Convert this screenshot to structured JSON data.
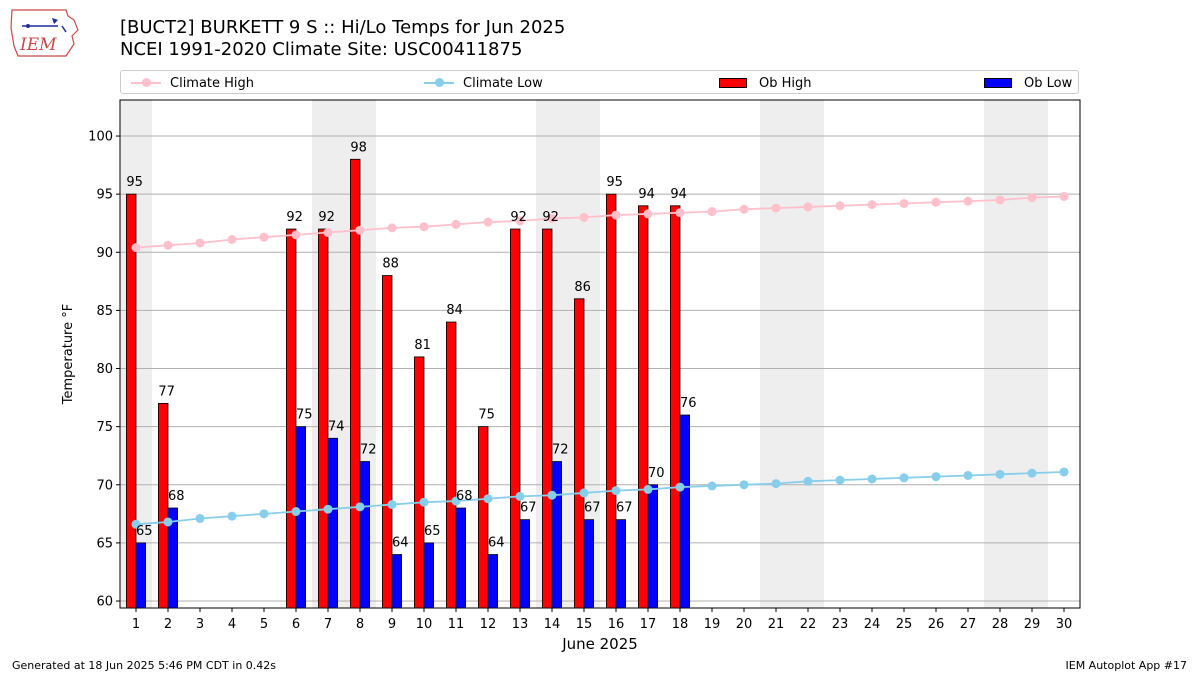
{
  "header": {
    "logo_text": "IEM",
    "title_line1": "[BUCT2] BURKETT 9 S :: Hi/Lo Temps for Jun 2025",
    "title_line2": "NCEI 1991-2020 Climate Site: USC00411875"
  },
  "legend": {
    "location": "top, above plot",
    "items": [
      {
        "label": "Climate High",
        "kind": "line",
        "color": "#ffc0cb"
      },
      {
        "label": "Climate Low",
        "kind": "line",
        "color": "#87ceeb"
      },
      {
        "label": "Ob High",
        "kind": "bar",
        "color": "#ff0000"
      },
      {
        "label": "Ob Low",
        "kind": "bar",
        "color": "#0000ff"
      }
    ]
  },
  "footer": {
    "generated": "Generated at 18 Jun 2025 5:46 PM CDT in 0.42s",
    "app": "IEM Autoplot App #17"
  },
  "chart_data": {
    "type": "bar",
    "xlabel": "June 2025",
    "ylabel": "Temperature °F",
    "xlim": [
      0.5,
      30.5
    ],
    "ylim": [
      59.4,
      103.1
    ],
    "yticks": [
      60,
      65,
      70,
      75,
      80,
      85,
      90,
      95,
      100
    ],
    "grid": "horizontal",
    "weekend_shading_days": [
      1,
      7,
      8,
      14,
      15,
      21,
      22,
      28,
      29
    ],
    "categories": [
      "1",
      "2",
      "3",
      "4",
      "5",
      "6",
      "7",
      "8",
      "9",
      "10",
      "11",
      "12",
      "13",
      "14",
      "15",
      "16",
      "17",
      "18",
      "19",
      "20",
      "21",
      "22",
      "23",
      "24",
      "25",
      "26",
      "27",
      "28",
      "29",
      "30"
    ],
    "series": [
      {
        "name": "Ob High",
        "type": "bar",
        "color": "#ff0000",
        "values": [
          95,
          77,
          null,
          null,
          null,
          92,
          92,
          98,
          88,
          81,
          84,
          75,
          92,
          92,
          86,
          95,
          94,
          94,
          null,
          null,
          null,
          null,
          null,
          null,
          null,
          null,
          null,
          null,
          null,
          null
        ],
        "labels": [
          "95",
          "77",
          "",
          "",
          "",
          "92",
          "92",
          "98",
          "88",
          "81",
          "84",
          "75",
          "92",
          "92",
          "86",
          "95",
          "94",
          "94",
          "",
          "",
          "",
          "",
          "",
          "",
          "",
          "",
          "",
          "",
          "",
          ""
        ]
      },
      {
        "name": "Ob Low",
        "type": "bar",
        "color": "#0000ff",
        "values": [
          65,
          68,
          null,
          null,
          null,
          75,
          74,
          72,
          64,
          65,
          68,
          64,
          67,
          72,
          67,
          67,
          70,
          76,
          null,
          null,
          null,
          null,
          null,
          null,
          null,
          null,
          null,
          null,
          null,
          null
        ],
        "labels": [
          "65",
          "68",
          "",
          "",
          "",
          "75",
          "74",
          "72",
          "64",
          "65",
          "68",
          "64",
          "67",
          "72",
          "67",
          "67",
          "70",
          "76",
          "",
          "",
          "",
          "",
          "",
          "",
          "",
          "",
          "",
          "",
          "",
          ""
        ]
      },
      {
        "name": "Climate High",
        "type": "line",
        "color": "#ffc0cb",
        "values": [
          90.4,
          90.6,
          90.8,
          91.1,
          91.3,
          91.5,
          91.7,
          91.9,
          92.1,
          92.2,
          92.4,
          92.6,
          92.7,
          92.9,
          93.0,
          93.2,
          93.3,
          93.4,
          93.5,
          93.7,
          93.8,
          93.9,
          94.0,
          94.1,
          94.2,
          94.3,
          94.4,
          94.5,
          94.7,
          94.8
        ]
      },
      {
        "name": "Climate Low",
        "type": "line",
        "color": "#87ceeb",
        "values": [
          66.6,
          66.8,
          67.1,
          67.3,
          67.5,
          67.7,
          67.9,
          68.1,
          68.3,
          68.5,
          68.6,
          68.8,
          69.0,
          69.1,
          69.3,
          69.5,
          69.6,
          69.8,
          69.9,
          70.0,
          70.1,
          70.3,
          70.4,
          70.5,
          70.6,
          70.7,
          70.8,
          70.9,
          71.0,
          71.1
        ]
      }
    ]
  }
}
